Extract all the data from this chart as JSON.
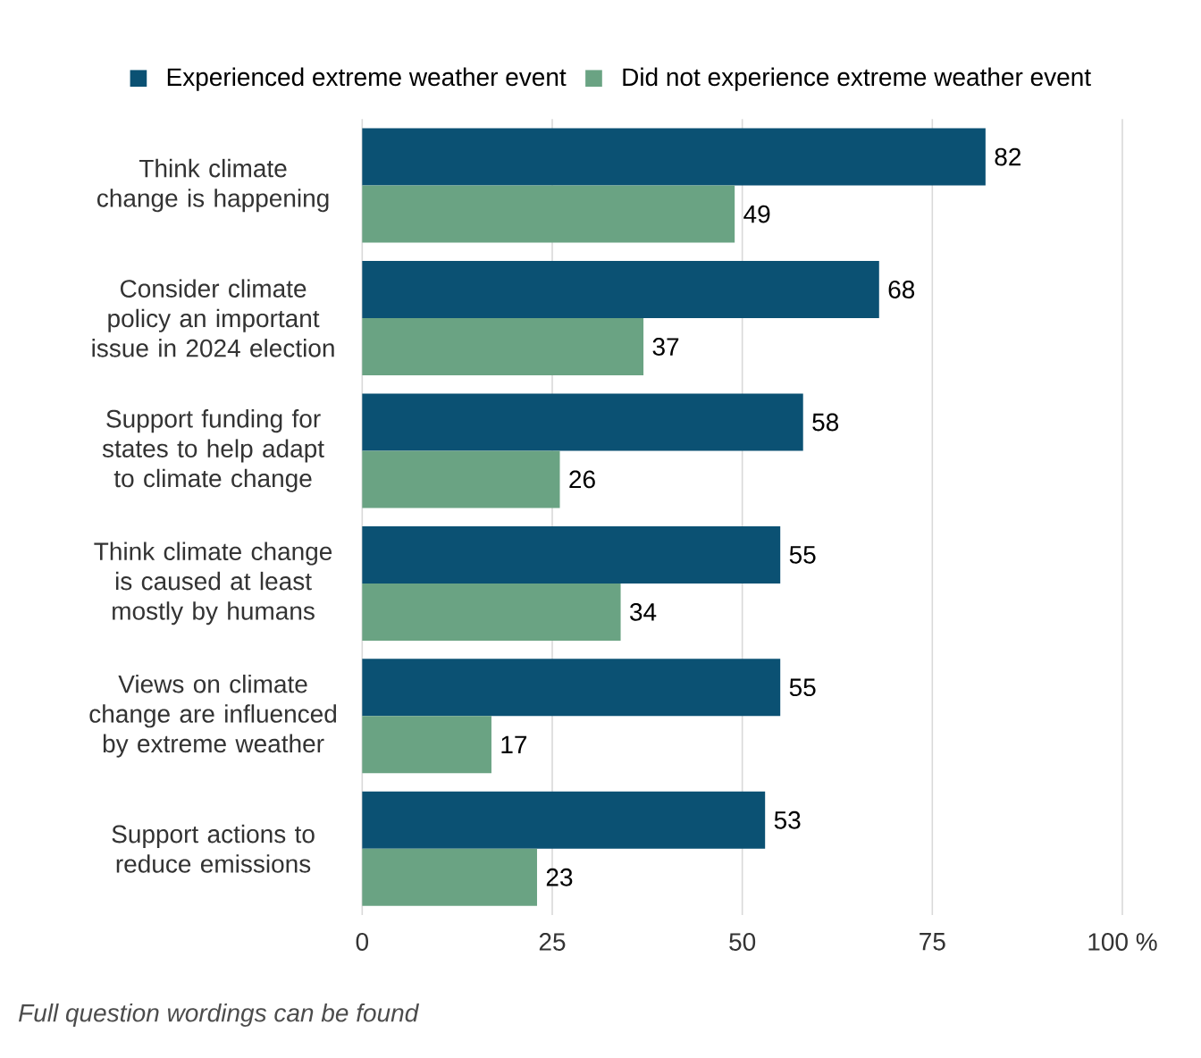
{
  "chart_data": {
    "type": "bar",
    "orientation": "horizontal",
    "categories": [
      "Think climate change is happening",
      "Consider climate policy an important issue in 2024 election",
      "Support funding for states to help adapt to climate change",
      "Think climate change is caused at least mostly by humans",
      "Views on climate change are influenced by extreme weather",
      "Support actions to reduce emissions"
    ],
    "series": [
      {
        "name": "Experienced extreme weather event",
        "color": "#0b5173",
        "values": [
          82,
          68,
          58,
          55,
          55,
          53
        ]
      },
      {
        "name": "Did not experience extreme weather event",
        "color": "#6aa383",
        "values": [
          49,
          37,
          26,
          34,
          17,
          23
        ]
      }
    ],
    "xlim": [
      0,
      100
    ],
    "xticks": [
      0,
      25,
      50,
      75,
      {
        "value": 100,
        "label": "100 %"
      }
    ],
    "grid": "x",
    "legend": "top",
    "data_labels": true,
    "annotations": [
      "Full question wordings can be found"
    ]
  }
}
